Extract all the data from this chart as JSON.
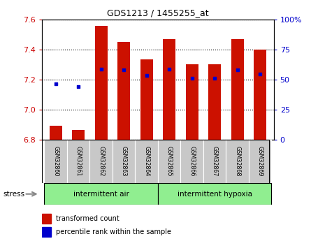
{
  "title": "GDS1213 / 1455255_at",
  "samples": [
    "GSM32860",
    "GSM32861",
    "GSM32862",
    "GSM32863",
    "GSM32864",
    "GSM32865",
    "GSM32866",
    "GSM32867",
    "GSM32868",
    "GSM32869"
  ],
  "bar_values": [
    6.895,
    6.865,
    7.555,
    7.45,
    7.335,
    7.47,
    7.3,
    7.3,
    7.47,
    7.4
  ],
  "bar_base": 6.8,
  "blue_dot_values": [
    7.17,
    7.155,
    7.27,
    7.265,
    7.225,
    7.27,
    7.21,
    7.21,
    7.265,
    7.235
  ],
  "ylim": [
    6.8,
    7.6
  ],
  "yticks": [
    6.8,
    7.0,
    7.2,
    7.4,
    7.6
  ],
  "right_yticks": [
    0,
    25,
    50,
    75,
    100
  ],
  "right_ylabels": [
    "0",
    "25",
    "50",
    "75",
    "100%"
  ],
  "bar_color": "#cc1100",
  "dot_color": "#0000cc",
  "group1_label": "intermittent air",
  "group2_label": "intermittent hypoxia",
  "stress_label": "stress",
  "legend_bar_label": "transformed count",
  "legend_dot_label": "percentile rank within the sample",
  "group_bg_color": "#90ee90",
  "tick_bg_color": "#c8c8c8",
  "fig_bg_color": "#ffffff",
  "plot_bg_color": "#ffffff",
  "grid_color": "#000000",
  "left_axis_color": "#cc0000",
  "right_axis_color": "#0000cc"
}
